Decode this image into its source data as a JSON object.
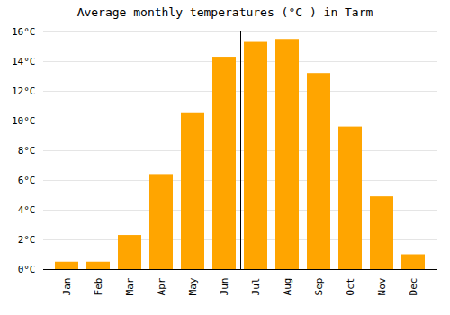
{
  "chart_data": {
    "type": "bar",
    "title": "Average monthly temperatures (°C ) in Tarm",
    "categories": [
      "Jan",
      "Feb",
      "Mar",
      "Apr",
      "May",
      "Jun",
      "Jul",
      "Aug",
      "Sep",
      "Oct",
      "Nov",
      "Dec"
    ],
    "values": [
      0.5,
      0.5,
      2.3,
      6.4,
      10.5,
      14.3,
      15.3,
      15.5,
      13.2,
      9.6,
      4.9,
      1.0
    ],
    "color": "#FFA500",
    "ylim": [
      0,
      16
    ],
    "yticks": [
      {
        "value": 0,
        "label": "0°C"
      },
      {
        "value": 2,
        "label": "2°C"
      },
      {
        "value": 4,
        "label": "4°C"
      },
      {
        "value": 6,
        "label": "6°C"
      },
      {
        "value": 8,
        "label": "8°C"
      },
      {
        "value": 10,
        "label": "10°C"
      },
      {
        "value": 12,
        "label": "12°C"
      },
      {
        "value": 14,
        "label": "14°C"
      },
      {
        "value": 16,
        "label": "16°C"
      }
    ],
    "grid": true
  }
}
